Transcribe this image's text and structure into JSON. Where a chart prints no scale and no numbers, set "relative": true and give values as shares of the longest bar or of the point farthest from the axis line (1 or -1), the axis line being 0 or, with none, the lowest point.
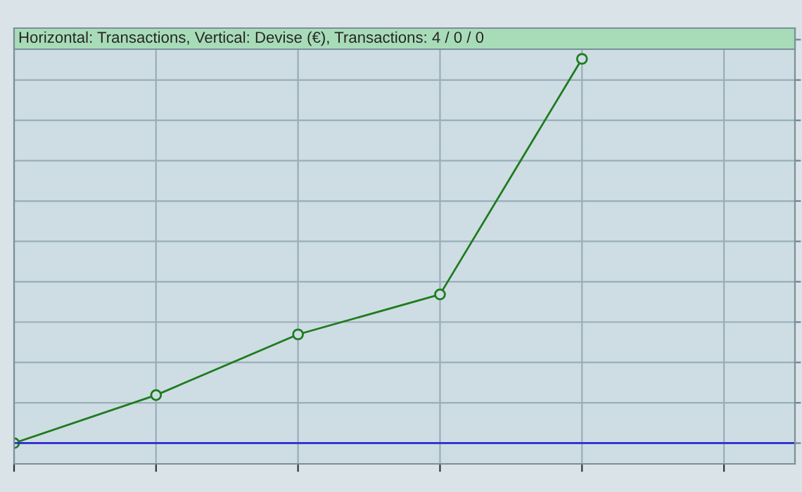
{
  "chart_data": {
    "type": "line",
    "title": "Horizontal: Transactions, Vertical: Devise (€), Transactions: 4 / 0 / 0",
    "categories": [
      null,
      null,
      null,
      null,
      null,
      null
    ],
    "series": [
      {
        "color": "#1e7b1e",
        "values": [
          0,
          0.125,
          0.283,
          0.387,
          1.0,
          null
        ]
      }
    ],
    "relative": true,
    "marker": "circle",
    "grid": true,
    "legend": false
  }
}
